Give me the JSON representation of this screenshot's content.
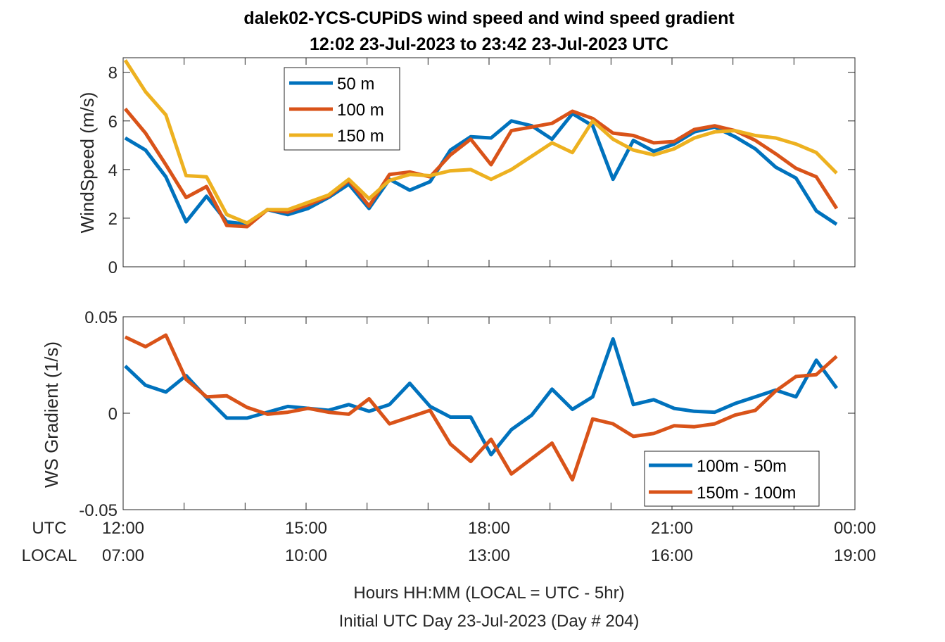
{
  "title_line1": "dalek02-YCS-CUPiDS  wind speed and wind speed gradient",
  "title_line2": "12:02 23-Jul-2023 to 23:42 23-Jul-2023  UTC",
  "footer_line1": "Hours HH:MM  (LOCAL = UTC - 5hr)",
  "footer_line2": "Initial UTC Day 23-Jul-2023 (Day # 204)",
  "row_labels": {
    "utc": "UTC",
    "local": "LOCAL"
  },
  "x_ticks": [
    {
      "hour": 12,
      "utc": "12:00",
      "local": "07:00"
    },
    {
      "hour": 15,
      "utc": "15:00",
      "local": "10:00"
    },
    {
      "hour": 18,
      "utc": "18:00",
      "local": "13:00"
    },
    {
      "hour": 21,
      "utc": "21:00",
      "local": "16:00"
    },
    {
      "hour": 24,
      "utc": "00:00",
      "local": "19:00"
    }
  ],
  "chart_data": [
    {
      "type": "line",
      "ylabel": "WindSpeed (m/s)",
      "xlim": [
        12,
        24
      ],
      "ylim": [
        0,
        8.6
      ],
      "yticks": [
        0,
        2,
        4,
        6,
        8
      ],
      "ytick_labels": [
        "0",
        "2",
        "4",
        "6",
        "8"
      ],
      "legend_position": "top-left",
      "x": [
        12.033,
        12.367,
        12.7,
        13.033,
        13.367,
        13.7,
        14.033,
        14.367,
        14.7,
        15.033,
        15.367,
        15.7,
        16.033,
        16.367,
        16.7,
        17.033,
        17.367,
        17.7,
        18.033,
        18.367,
        18.7,
        19.033,
        19.367,
        19.7,
        20.033,
        20.367,
        20.7,
        21.033,
        21.367,
        21.7,
        22.033,
        22.367,
        22.7,
        23.033,
        23.367,
        23.7
      ],
      "series": [
        {
          "name": "50 m",
          "color": "#0072BD",
          "values": [
            5.3,
            4.8,
            3.7,
            1.85,
            2.9,
            1.85,
            1.75,
            2.35,
            2.15,
            2.4,
            2.85,
            3.4,
            2.4,
            3.6,
            3.15,
            3.5,
            4.8,
            5.35,
            5.3,
            6.0,
            5.8,
            5.25,
            6.3,
            5.8,
            3.6,
            5.2,
            4.75,
            5.05,
            5.55,
            5.75,
            5.35,
            4.85,
            4.1,
            3.65,
            2.3,
            1.75
          ]
        },
        {
          "name": "100 m",
          "color": "#D95319",
          "values": [
            6.5,
            5.5,
            4.2,
            2.85,
            3.3,
            1.7,
            1.65,
            2.35,
            2.25,
            2.55,
            2.9,
            3.55,
            2.5,
            3.8,
            3.9,
            3.7,
            4.6,
            5.25,
            4.2,
            5.6,
            5.75,
            5.9,
            6.4,
            6.1,
            5.5,
            5.4,
            5.1,
            5.15,
            5.65,
            5.8,
            5.6,
            5.2,
            4.65,
            4.05,
            3.7,
            2.4
          ]
        },
        {
          "name": "150 m",
          "color": "#EDB120",
          "values": [
            8.5,
            7.2,
            6.25,
            3.75,
            3.7,
            2.15,
            1.8,
            2.35,
            2.35,
            2.65,
            2.95,
            3.6,
            2.8,
            3.55,
            3.8,
            3.75,
            3.95,
            4.0,
            3.6,
            4.0,
            4.55,
            5.1,
            4.7,
            6.0,
            5.25,
            4.8,
            4.6,
            4.85,
            5.3,
            5.55,
            5.6,
            5.4,
            5.3,
            5.05,
            4.7,
            3.85
          ]
        }
      ]
    },
    {
      "type": "line",
      "ylabel": "WS Gradient (1/s)",
      "xlim": [
        12,
        24
      ],
      "ylim": [
        -0.05,
        0.05
      ],
      "yticks": [
        -0.05,
        0,
        0.05
      ],
      "ytick_labels": [
        "-0.05",
        "0",
        "0.05"
      ],
      "legend_position": "bottom-right",
      "x": [
        12.033,
        12.367,
        12.7,
        13.033,
        13.367,
        13.7,
        14.033,
        14.367,
        14.7,
        15.033,
        15.367,
        15.7,
        16.033,
        16.367,
        16.7,
        17.033,
        17.367,
        17.7,
        18.033,
        18.367,
        18.7,
        19.033,
        19.367,
        19.7,
        20.033,
        20.367,
        20.7,
        21.033,
        21.367,
        21.7,
        22.033,
        22.367,
        22.7,
        23.033,
        23.367,
        23.7
      ],
      "series": [
        {
          "name": "100m - 50m",
          "color": "#0072BD",
          "values": [
            0.0245,
            0.0145,
            0.011,
            0.0195,
            0.008,
            -0.0025,
            -0.0025,
            0.0005,
            0.0035,
            0.0025,
            0.0015,
            0.0045,
            0.001,
            0.0045,
            0.0155,
            0.0035,
            -0.002,
            -0.002,
            -0.0215,
            -0.0085,
            -0.001,
            0.0125,
            0.002,
            0.0085,
            0.0385,
            0.0045,
            0.007,
            0.0025,
            0.001,
            0.0005,
            0.005,
            0.0085,
            0.012,
            0.0085,
            0.0275,
            0.013
          ]
        },
        {
          "name": "150m - 100m",
          "color": "#D95319",
          "values": [
            0.0395,
            0.0345,
            0.0405,
            0.0175,
            0.0085,
            0.009,
            0.003,
            -0.0005,
            0.0005,
            0.0025,
            0.0005,
            -0.0005,
            0.0075,
            -0.0055,
            -0.002,
            0.0015,
            -0.016,
            -0.025,
            -0.0135,
            -0.0315,
            -0.0235,
            -0.0155,
            -0.0345,
            -0.003,
            -0.0055,
            -0.012,
            -0.0105,
            -0.0065,
            -0.007,
            -0.0055,
            -0.001,
            0.0015,
            0.0115,
            0.019,
            0.02,
            0.0295
          ]
        }
      ]
    }
  ]
}
